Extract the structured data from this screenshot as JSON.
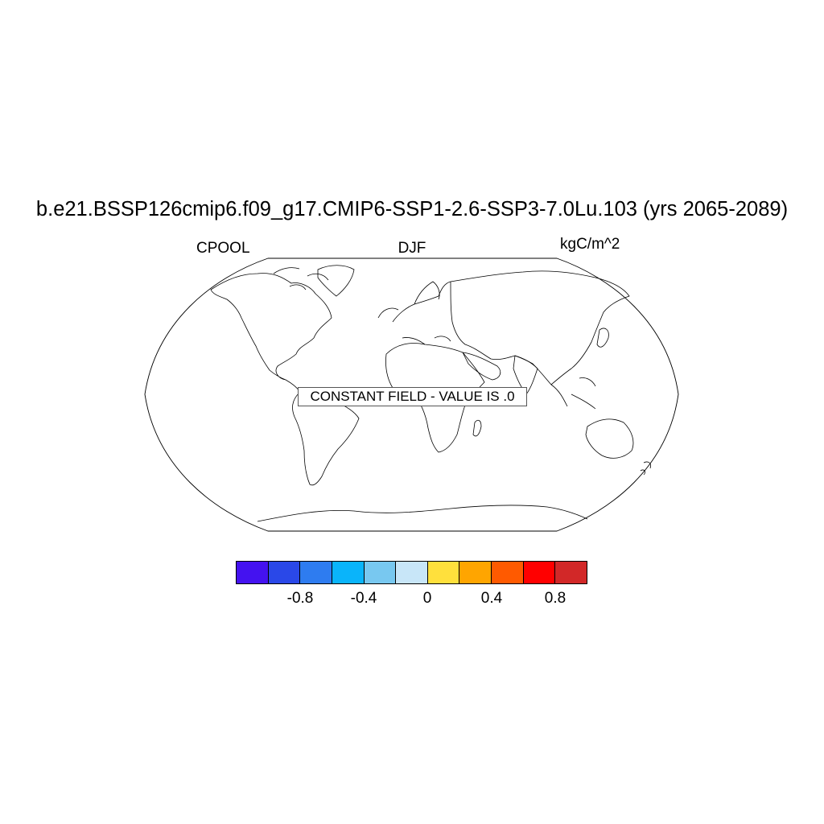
{
  "title": "b.e21.BSSP126cmip6.f09_g17.CMIP6-SSP1-2.6-SSP3-7.0Lu.103 (yrs 2065-2089)",
  "left_label": "CPOOL",
  "center_label": "DJF",
  "right_label": "kgC/m^2",
  "notice": "CONSTANT FIELD - VALUE IS .0",
  "colorbar": {
    "colors": [
      "#4412F0",
      "#2A48E8",
      "#2E7CF0",
      "#0AB4FA",
      "#78C8F0",
      "#C8E6F8",
      "#FFE03C",
      "#FFA500",
      "#FF5A00",
      "#FF0000",
      "#D22828"
    ],
    "tick_labels": [
      "-0.8",
      "-0.4",
      "0",
      "0.4",
      "0.8"
    ]
  }
}
